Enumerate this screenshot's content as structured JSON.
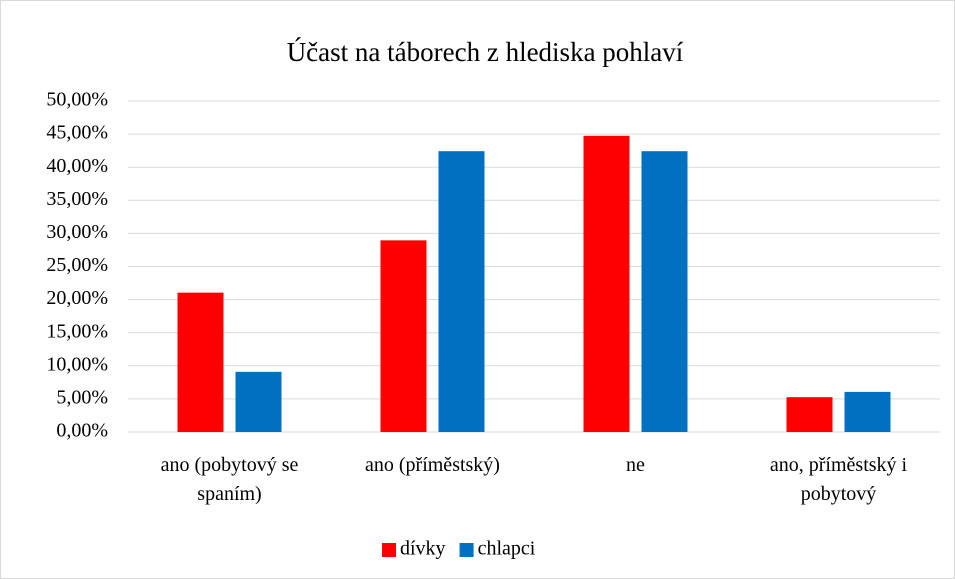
{
  "chart_data": {
    "type": "bar",
    "title": "Účast na táborech z hlediska pohlaví",
    "categories": [
      "ano (pobytový se spaním)",
      "ano (příměstský)",
      "ne",
      "ano, příměstský i pobytový"
    ],
    "series": [
      {
        "name": "dívky",
        "color": "#ff0000",
        "values": [
          21.05,
          28.95,
          44.74,
          5.26
        ]
      },
      {
        "name": "chlapci",
        "color": "#0070c0",
        "values": [
          9.09,
          42.42,
          42.42,
          6.06
        ]
      }
    ],
    "ylim": [
      0,
      50
    ],
    "yticks": [
      {
        "value": 0,
        "label": "0,00%"
      },
      {
        "value": 5,
        "label": "5,00%"
      },
      {
        "value": 10,
        "label": "10,00%"
      },
      {
        "value": 15,
        "label": "15,00%"
      },
      {
        "value": 20,
        "label": "20,00%"
      },
      {
        "value": 25,
        "label": "25,00%"
      },
      {
        "value": 30,
        "label": "30,00%"
      },
      {
        "value": 35,
        "label": "35,00%"
      },
      {
        "value": 40,
        "label": "40,00%"
      },
      {
        "value": 45,
        "label": "45,00%"
      },
      {
        "value": 50,
        "label": "50,00%"
      }
    ],
    "grid": true,
    "legend": "bottom"
  }
}
